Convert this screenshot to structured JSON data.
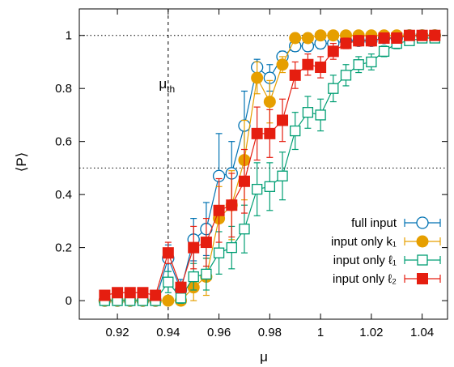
{
  "chart_data": {
    "type": "line",
    "title": "",
    "xlabel": "μ",
    "ylabel": "⟨P⟩",
    "xlim": [
      0.905,
      1.05
    ],
    "ylim": [
      -0.07,
      1.1
    ],
    "x_ticks": [
      0.92,
      0.94,
      0.96,
      0.98,
      1,
      1.02,
      1.04
    ],
    "x_tick_labels": [
      "0.92",
      "0.94",
      "0.96",
      "0.98",
      "1",
      "1.02",
      "1.04"
    ],
    "y_ticks": [
      0,
      0.2,
      0.4,
      0.6,
      0.8,
      1
    ],
    "y_tick_labels": [
      "0",
      "0.2",
      "0.4",
      "0.6",
      "0.8",
      "1"
    ],
    "grid": false,
    "legend_position": "bottom-right",
    "reference_lines": [
      {
        "orientation": "horizontal",
        "value": 1,
        "style": "dotted"
      },
      {
        "orientation": "horizontal",
        "value": 0.5,
        "style": "dotted"
      },
      {
        "orientation": "vertical",
        "value": 0.94,
        "style": "dashed"
      }
    ],
    "annotation": {
      "base": "μ",
      "subscript": "th",
      "x": 0.9395,
      "y": 0.8
    },
    "series": [
      {
        "name": "full input",
        "color": "#0072b2",
        "marker": "open-circle",
        "x": [
          0.915,
          0.92,
          0.925,
          0.93,
          0.935,
          0.94,
          0.945,
          0.95,
          0.955,
          0.96,
          0.965,
          0.97,
          0.975,
          0.98,
          0.985,
          0.99,
          0.995,
          1.0,
          1.005,
          1.01,
          1.015,
          1.02,
          1.025,
          1.03,
          1.035,
          1.04,
          1.045
        ],
        "y": [
          0.0,
          0.0,
          0.0,
          0.0,
          0.0,
          0.16,
          0.04,
          0.23,
          0.27,
          0.47,
          0.48,
          0.66,
          0.88,
          0.84,
          0.92,
          0.96,
          0.96,
          0.97,
          0.97,
          0.98,
          0.98,
          0.98,
          0.99,
          0.99,
          1.0,
          1.0,
          1.0
        ],
        "err": [
          0.0,
          0.0,
          0.0,
          0.0,
          0.0,
          0.05,
          0.04,
          0.08,
          0.1,
          0.16,
          0.12,
          0.13,
          0.03,
          0.05,
          0.02,
          0.02,
          0.02,
          0.02,
          0.02,
          0.01,
          0.01,
          0.01,
          0.01,
          0.01,
          0.0,
          0.0,
          0.0
        ]
      },
      {
        "name": "input only k₁",
        "color": "#e69f00",
        "marker": "filled-circle",
        "x": [
          0.915,
          0.92,
          0.925,
          0.93,
          0.935,
          0.94,
          0.945,
          0.95,
          0.955,
          0.96,
          0.965,
          0.97,
          0.975,
          0.98,
          0.985,
          0.99,
          0.995,
          1.0,
          1.005,
          1.01,
          1.015,
          1.02,
          1.025,
          1.03,
          1.035,
          1.04,
          1.045
        ],
        "y": [
          0.0,
          0.0,
          0.0,
          0.0,
          0.0,
          0.0,
          0.0,
          0.05,
          0.09,
          0.31,
          0.36,
          0.53,
          0.84,
          0.75,
          0.89,
          0.99,
          0.99,
          1.0,
          1.0,
          1.0,
          1.0,
          1.0,
          1.0,
          1.0,
          1.0,
          1.0,
          1.0
        ],
        "err": [
          0.0,
          0.0,
          0.0,
          0.0,
          0.0,
          0.0,
          0.0,
          0.05,
          0.07,
          0.12,
          0.13,
          0.15,
          0.06,
          0.08,
          0.03,
          0.01,
          0.01,
          0.0,
          0.0,
          0.0,
          0.0,
          0.0,
          0.0,
          0.0,
          0.0,
          0.0,
          0.0
        ]
      },
      {
        "name": "input only ℓ₁",
        "color": "#009e73",
        "marker": "open-square",
        "x": [
          0.915,
          0.92,
          0.925,
          0.93,
          0.935,
          0.94,
          0.945,
          0.95,
          0.955,
          0.96,
          0.965,
          0.97,
          0.975,
          0.98,
          0.985,
          0.99,
          0.995,
          1.0,
          1.005,
          1.01,
          1.015,
          1.02,
          1.025,
          1.03,
          1.035,
          1.04,
          1.045
        ],
        "y": [
          0.0,
          0.0,
          0.0,
          0.0,
          0.0,
          0.07,
          0.01,
          0.09,
          0.1,
          0.18,
          0.2,
          0.27,
          0.42,
          0.43,
          0.47,
          0.64,
          0.71,
          0.7,
          0.8,
          0.85,
          0.89,
          0.9,
          0.94,
          0.97,
          0.98,
          0.99,
          0.99
        ],
        "err": [
          0.0,
          0.0,
          0.0,
          0.0,
          0.0,
          0.04,
          0.02,
          0.05,
          0.06,
          0.08,
          0.08,
          0.09,
          0.1,
          0.09,
          0.09,
          0.07,
          0.06,
          0.06,
          0.05,
          0.04,
          0.03,
          0.03,
          0.02,
          0.02,
          0.01,
          0.01,
          0.01
        ]
      },
      {
        "name": "input only ℓ₂",
        "color": "#e51e10",
        "marker": "filled-square",
        "x": [
          0.915,
          0.92,
          0.925,
          0.93,
          0.935,
          0.94,
          0.945,
          0.95,
          0.955,
          0.96,
          0.965,
          0.97,
          0.975,
          0.98,
          0.985,
          0.99,
          0.995,
          1.0,
          1.005,
          1.01,
          1.015,
          1.02,
          1.025,
          1.03,
          1.035,
          1.04,
          1.045
        ],
        "y": [
          0.02,
          0.03,
          0.03,
          0.03,
          0.02,
          0.18,
          0.05,
          0.2,
          0.22,
          0.34,
          0.36,
          0.45,
          0.63,
          0.63,
          0.68,
          0.85,
          0.89,
          0.88,
          0.94,
          0.97,
          0.98,
          0.98,
          0.99,
          0.99,
          1.0,
          1.0,
          1.0
        ],
        "err": [
          0.0,
          0.0,
          0.0,
          0.0,
          0.0,
          0.04,
          0.02,
          0.08,
          0.09,
          0.12,
          0.12,
          0.12,
          0.1,
          0.09,
          0.08,
          0.05,
          0.04,
          0.04,
          0.03,
          0.02,
          0.02,
          0.02,
          0.01,
          0.01,
          0.0,
          0.0,
          0.0
        ]
      }
    ]
  }
}
